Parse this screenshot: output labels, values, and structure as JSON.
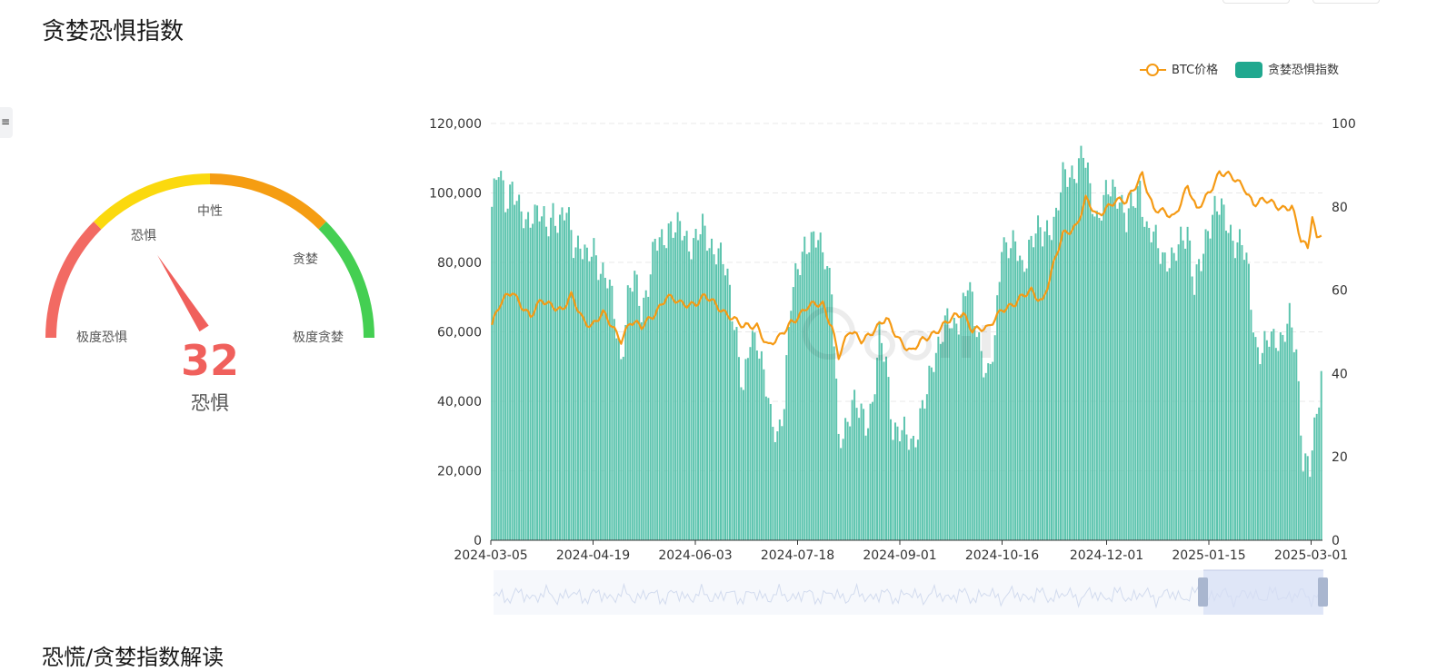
{
  "page": {
    "title": "贪婪恐惧指数",
    "section_title": "恐慌/贪婪指数解读"
  },
  "gauge": {
    "value": 32,
    "value_label": "恐惧",
    "max": 100,
    "zone_labels": [
      "极度恐惧",
      "恐惧",
      "中性",
      "贪婪",
      "极度贪婪"
    ],
    "zone_colors": [
      "#f26a63",
      "#fbd90e",
      "#f59d12",
      "#44cf52"
    ],
    "value_color": "#f0605c"
  },
  "legend": {
    "btc_label": "BTC价格",
    "index_label": "贪婪恐惧指数"
  },
  "colors": {
    "line": "#f59a14",
    "bar": "#5cc4ae",
    "bar_stroke": "#3aa88f",
    "legend_bar": "#20a88f",
    "grid": "#e8e8e8",
    "axis_text": "#333333"
  },
  "chart_data": {
    "type": "bar+line",
    "x_range": [
      "2024-03-05",
      "2025-03-06"
    ],
    "x_tick_labels": [
      "2024-03-05",
      "2024-04-19",
      "2024-06-03",
      "2024-07-18",
      "2024-09-01",
      "2024-10-16",
      "2024-12-01",
      "2025-01-15",
      "2025-03-01"
    ],
    "y_left": {
      "ticks": [
        "0",
        "20,000",
        "40,000",
        "60,000",
        "80,000",
        "100,000",
        "120,000"
      ],
      "range": [
        0,
        120000
      ]
    },
    "y_right": {
      "ticks": [
        "0",
        "20",
        "40",
        "60",
        "80",
        "100"
      ],
      "range": [
        0,
        100
      ]
    },
    "grid": true,
    "legend_position": "top-right",
    "series": [
      {
        "name": "贪婪恐惧指数",
        "axis": "right",
        "type": "bar",
        "points": [
          [
            "2024-03-05",
            80
          ],
          [
            "2024-03-08",
            88
          ],
          [
            "2024-03-11",
            82
          ],
          [
            "2024-03-14",
            86
          ],
          [
            "2024-03-17",
            78
          ],
          [
            "2024-03-20",
            76
          ],
          [
            "2024-03-23",
            80
          ],
          [
            "2024-03-26",
            78
          ],
          [
            "2024-03-29",
            74
          ],
          [
            "2024-04-01",
            80
          ],
          [
            "2024-04-04",
            76
          ],
          [
            "2024-04-07",
            78
          ],
          [
            "2024-04-10",
            72
          ],
          [
            "2024-04-13",
            72
          ],
          [
            "2024-04-16",
            66
          ],
          [
            "2024-04-19",
            70
          ],
          [
            "2024-04-22",
            66
          ],
          [
            "2024-04-25",
            62
          ],
          [
            "2024-04-28",
            54
          ],
          [
            "2024-05-01",
            44
          ],
          [
            "2024-05-04",
            58
          ],
          [
            "2024-05-07",
            62
          ],
          [
            "2024-05-10",
            56
          ],
          [
            "2024-05-13",
            62
          ],
          [
            "2024-05-16",
            70
          ],
          [
            "2024-05-19",
            72
          ],
          [
            "2024-05-22",
            76
          ],
          [
            "2024-05-25",
            74
          ],
          [
            "2024-05-28",
            74
          ],
          [
            "2024-05-31",
            72
          ],
          [
            "2024-06-03",
            72
          ],
          [
            "2024-06-06",
            74
          ],
          [
            "2024-06-09",
            72
          ],
          [
            "2024-06-12",
            70
          ],
          [
            "2024-06-15",
            66
          ],
          [
            "2024-06-18",
            60
          ],
          [
            "2024-06-21",
            50
          ],
          [
            "2024-06-24",
            34
          ],
          [
            "2024-06-27",
            48
          ],
          [
            "2024-06-30",
            50
          ],
          [
            "2024-07-03",
            40
          ],
          [
            "2024-07-06",
            28
          ],
          [
            "2024-07-09",
            26
          ],
          [
            "2024-07-12",
            34
          ],
          [
            "2024-07-15",
            56
          ],
          [
            "2024-07-18",
            66
          ],
          [
            "2024-07-21",
            72
          ],
          [
            "2024-07-24",
            70
          ],
          [
            "2024-07-27",
            72
          ],
          [
            "2024-07-30",
            70
          ],
          [
            "2024-08-02",
            60
          ],
          [
            "2024-08-05",
            22
          ],
          [
            "2024-08-08",
            28
          ],
          [
            "2024-08-11",
            34
          ],
          [
            "2024-08-14",
            30
          ],
          [
            "2024-08-17",
            28
          ],
          [
            "2024-08-20",
            34
          ],
          [
            "2024-08-23",
            48
          ],
          [
            "2024-08-26",
            42
          ],
          [
            "2024-08-29",
            28
          ],
          [
            "2024-09-01",
            26
          ],
          [
            "2024-09-04",
            24
          ],
          [
            "2024-09-07",
            24
          ],
          [
            "2024-09-10",
            30
          ],
          [
            "2024-09-13",
            34
          ],
          [
            "2024-09-16",
            44
          ],
          [
            "2024-09-19",
            50
          ],
          [
            "2024-09-22",
            52
          ],
          [
            "2024-09-25",
            50
          ],
          [
            "2024-09-28",
            56
          ],
          [
            "2024-10-01",
            62
          ],
          [
            "2024-10-04",
            52
          ],
          [
            "2024-10-07",
            46
          ],
          [
            "2024-10-10",
            40
          ],
          [
            "2024-10-13",
            46
          ],
          [
            "2024-10-16",
            72
          ],
          [
            "2024-10-19",
            72
          ],
          [
            "2024-10-22",
            70
          ],
          [
            "2024-10-25",
            64
          ],
          [
            "2024-10-28",
            72
          ],
          [
            "2024-10-31",
            74
          ],
          [
            "2024-11-03",
            72
          ],
          [
            "2024-11-06",
            76
          ],
          [
            "2024-11-09",
            78
          ],
          [
            "2024-11-12",
            86
          ],
          [
            "2024-11-15",
            88
          ],
          [
            "2024-11-18",
            90
          ],
          [
            "2024-11-21",
            92
          ],
          [
            "2024-11-24",
            84
          ],
          [
            "2024-11-27",
            78
          ],
          [
            "2024-12-01",
            82
          ],
          [
            "2024-12-04",
            84
          ],
          [
            "2024-12-07",
            84
          ],
          [
            "2024-12-10",
            76
          ],
          [
            "2024-12-13",
            80
          ],
          [
            "2024-12-16",
            86
          ],
          [
            "2024-12-19",
            74
          ],
          [
            "2024-12-22",
            72
          ],
          [
            "2024-12-25",
            70
          ],
          [
            "2024-12-28",
            68
          ],
          [
            "2024-12-31",
            66
          ],
          [
            "2025-01-03",
            72
          ],
          [
            "2025-01-06",
            76
          ],
          [
            "2025-01-09",
            60
          ],
          [
            "2025-01-12",
            66
          ],
          [
            "2025-01-15",
            76
          ],
          [
            "2025-01-18",
            80
          ],
          [
            "2025-01-21",
            78
          ],
          [
            "2025-01-24",
            76
          ],
          [
            "2025-01-27",
            72
          ],
          [
            "2025-01-30",
            70
          ],
          [
            "2025-02-02",
            64
          ],
          [
            "2025-02-05",
            48
          ],
          [
            "2025-02-08",
            44
          ],
          [
            "2025-02-11",
            48
          ],
          [
            "2025-02-14",
            50
          ],
          [
            "2025-02-17",
            48
          ],
          [
            "2025-02-20",
            52
          ],
          [
            "2025-02-23",
            46
          ],
          [
            "2025-02-26",
            20
          ],
          [
            "2025-03-01",
            16
          ],
          [
            "2025-03-04",
            30
          ],
          [
            "2025-03-06",
            42
          ]
        ]
      },
      {
        "name": "BTC价格",
        "axis": "left",
        "type": "line",
        "points": [
          [
            "2024-03-05",
            62000
          ],
          [
            "2024-03-09",
            68000
          ],
          [
            "2024-03-14",
            72000
          ],
          [
            "2024-03-18",
            68000
          ],
          [
            "2024-03-22",
            64000
          ],
          [
            "2024-03-27",
            69000
          ],
          [
            "2024-04-01",
            68000
          ],
          [
            "2024-04-05",
            66000
          ],
          [
            "2024-04-09",
            70000
          ],
          [
            "2024-04-14",
            64000
          ],
          [
            "2024-04-18",
            62000
          ],
          [
            "2024-04-23",
            65000
          ],
          [
            "2024-05-01",
            58000
          ],
          [
            "2024-05-05",
            63000
          ],
          [
            "2024-05-10",
            61000
          ],
          [
            "2024-05-15",
            65000
          ],
          [
            "2024-05-21",
            70000
          ],
          [
            "2024-05-27",
            68000
          ],
          [
            "2024-06-03",
            68500
          ],
          [
            "2024-06-07",
            70000
          ],
          [
            "2024-06-12",
            67500
          ],
          [
            "2024-06-18",
            65000
          ],
          [
            "2024-06-24",
            61000
          ],
          [
            "2024-06-30",
            62000
          ],
          [
            "2024-07-05",
            56000
          ],
          [
            "2024-07-10",
            58000
          ],
          [
            "2024-07-15",
            63000
          ],
          [
            "2024-07-22",
            67000
          ],
          [
            "2024-07-29",
            68000
          ],
          [
            "2024-08-02",
            62000
          ],
          [
            "2024-08-05",
            53000
          ],
          [
            "2024-08-10",
            60000
          ],
          [
            "2024-08-15",
            58000
          ],
          [
            "2024-08-22",
            61000
          ],
          [
            "2024-08-26",
            63500
          ],
          [
            "2024-09-01",
            58000
          ],
          [
            "2024-09-06",
            54000
          ],
          [
            "2024-09-12",
            58000
          ],
          [
            "2024-09-18",
            61000
          ],
          [
            "2024-09-24",
            63500
          ],
          [
            "2024-09-29",
            65500
          ],
          [
            "2024-10-03",
            61000
          ],
          [
            "2024-10-10",
            60500
          ],
          [
            "2024-10-16",
            67000
          ],
          [
            "2024-10-22",
            68000
          ],
          [
            "2024-10-29",
            72000
          ],
          [
            "2024-11-03",
            69000
          ],
          [
            "2024-11-06",
            75000
          ],
          [
            "2024-11-12",
            88000
          ],
          [
            "2024-11-18",
            91000
          ],
          [
            "2024-11-22",
            98000
          ],
          [
            "2024-11-27",
            93000
          ],
          [
            "2024-12-01",
            96000
          ],
          [
            "2024-12-05",
            98000
          ],
          [
            "2024-12-10",
            97000
          ],
          [
            "2024-12-17",
            106000
          ],
          [
            "2024-12-22",
            95000
          ],
          [
            "2024-12-27",
            94000
          ],
          [
            "2024-12-31",
            93500
          ],
          [
            "2025-01-06",
            102000
          ],
          [
            "2025-01-10",
            94500
          ],
          [
            "2025-01-15",
            100000
          ],
          [
            "2025-01-20",
            106000
          ],
          [
            "2025-01-26",
            104000
          ],
          [
            "2025-01-31",
            102000
          ],
          [
            "2025-02-04",
            97000
          ],
          [
            "2025-02-10",
            97500
          ],
          [
            "2025-02-17",
            96000
          ],
          [
            "2025-02-21",
            96000
          ],
          [
            "2025-02-25",
            86000
          ],
          [
            "2025-02-28",
            84000
          ],
          [
            "2025-03-02",
            94000
          ],
          [
            "2025-03-04",
            87000
          ],
          [
            "2025-03-06",
            89000
          ]
        ]
      }
    ]
  }
}
